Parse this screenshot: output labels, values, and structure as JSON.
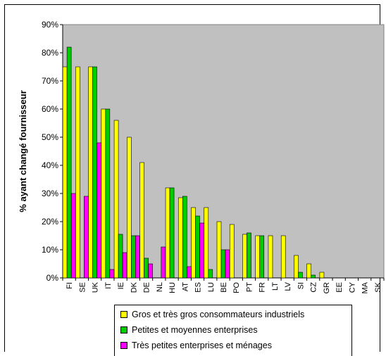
{
  "chart_data": {
    "type": "bar",
    "title": "",
    "xlabel": "",
    "ylabel": "% ayant changé fournisseur",
    "ylim": [
      0,
      90
    ],
    "yticks": [
      "0%",
      "10%",
      "20%",
      "30%",
      "40%",
      "50%",
      "60%",
      "70%",
      "80%",
      "90%"
    ],
    "grid": false,
    "plot_background": "#C0C0C0",
    "legend_position": "bottom",
    "categories": [
      "FI",
      "SE",
      "UK",
      "IT",
      "IE",
      "DK",
      "DE",
      "NL",
      "HU",
      "AT",
      "ES",
      "LU",
      "BE",
      "PO",
      "PT",
      "FR",
      "LT",
      "LV",
      "SI",
      "CZ",
      "GR",
      "EE",
      "CY",
      "MA",
      "SK"
    ],
    "series": [
      {
        "name": "Gros et très gros consommateurs industriels",
        "color": "#FFFF00",
        "values": [
          75,
          75,
          75,
          60,
          56,
          50,
          41,
          null,
          32,
          28.5,
          25,
          25,
          20,
          19,
          15.5,
          15,
          15,
          15,
          8,
          5,
          2,
          null,
          null,
          null,
          null
        ]
      },
      {
        "name": "Petites et moyennes enterprises",
        "color": "#00CC00",
        "values": [
          82,
          null,
          75,
          60,
          15.5,
          15,
          7,
          null,
          32,
          29,
          22,
          3,
          10,
          null,
          16,
          15,
          null,
          null,
          2,
          1,
          null,
          null,
          null,
          null,
          null
        ]
      },
      {
        "name": "Très petites enterprises et ménages",
        "color": "#FF00FF",
        "values": [
          30,
          29,
          48,
          3,
          9,
          15,
          5,
          11,
          null,
          4,
          19.5,
          null,
          10,
          null,
          null,
          null,
          null,
          null,
          null,
          null,
          null,
          null,
          null,
          null,
          null
        ]
      }
    ]
  }
}
